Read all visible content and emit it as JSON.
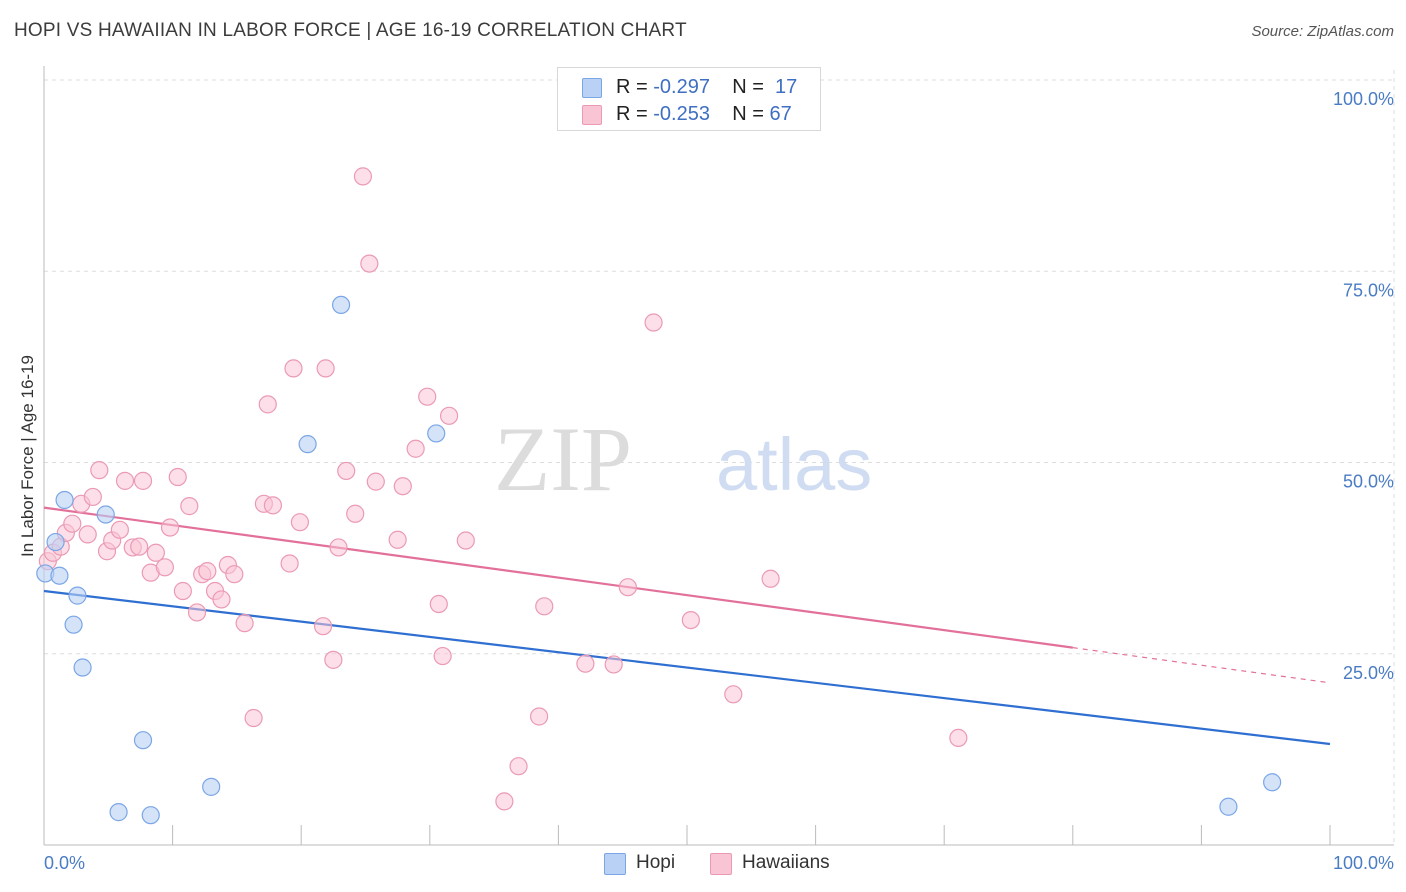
{
  "header": {
    "title": "HOPI VS HAWAIIAN IN LABOR FORCE | AGE 16-19 CORRELATION CHART",
    "source": "Source: ZipAtlas.com"
  },
  "watermark": {
    "zip": "ZIP",
    "atlas": "atlas"
  },
  "legend_top": {
    "hopi": {
      "r_label": "R =",
      "r_value": "-0.297",
      "n_label": "N =",
      "n_value": "17"
    },
    "hawaiians": {
      "r_label": "R =",
      "r_value": "-0.253",
      "n_label": "N =",
      "n_value": "67"
    }
  },
  "legend_bottom": {
    "hopi": "Hopi",
    "hawaiians": "Hawaiians"
  },
  "colors": {
    "hopi_fill": "#b9d1f5",
    "hopi_stroke": "#7aa6e6",
    "hopi_line": "#2f6fd1",
    "hawaiian_fill": "#f9c5d5",
    "hawaiian_stroke": "#eb9ab4",
    "hawaiian_line": "#e2709a",
    "tick_text": "#4a7cc4",
    "grid": "#dddddd"
  },
  "chart_data": {
    "type": "scatter",
    "title": "HOPI VS HAWAIIAN IN LABOR FORCE | AGE 16-19 CORRELATION CHART",
    "xlabel": "",
    "ylabel": "In Labor Force | Age 16-19",
    "xlim": [
      0,
      100
    ],
    "ylim": [
      0,
      100
    ],
    "x_tick_labels": [
      "0.0%",
      "100.0%"
    ],
    "y_ticks": [
      25,
      50,
      75,
      100
    ],
    "y_tick_labels": [
      "25.0%",
      "50.0%",
      "75.0%",
      "100.0%"
    ],
    "series": [
      {
        "name": "Hopi",
        "r": -0.297,
        "n": 17,
        "trend": {
          "x": [
            0,
            100
          ],
          "y": [
            33.2,
            13.2
          ]
        },
        "points": [
          [
            0.1,
            35.5
          ],
          [
            0.9,
            39.6
          ],
          [
            1.2,
            35.2
          ],
          [
            1.6,
            45.1
          ],
          [
            2.3,
            28.8
          ],
          [
            2.6,
            32.6
          ],
          [
            3.0,
            23.2
          ],
          [
            4.8,
            43.2
          ],
          [
            5.8,
            4.3
          ],
          [
            7.7,
            13.7
          ],
          [
            8.3,
            3.9
          ],
          [
            13.0,
            7.6
          ],
          [
            20.5,
            52.4
          ],
          [
            23.1,
            70.6
          ],
          [
            30.5,
            53.8
          ],
          [
            92.1,
            5.0
          ],
          [
            95.5,
            8.2
          ]
        ]
      },
      {
        "name": "Hawaiians",
        "r": -0.253,
        "n": 67,
        "trend": {
          "x": [
            0,
            80
          ],
          "y": [
            44.1,
            25.8
          ]
        },
        "trend_dashed": {
          "x": [
            80,
            100
          ],
          "y": [
            25.8,
            21.2
          ]
        },
        "points": [
          [
            0.3,
            37.1
          ],
          [
            0.7,
            38.2
          ],
          [
            1.3,
            39.0
          ],
          [
            1.7,
            40.8
          ],
          [
            2.2,
            42.0
          ],
          [
            2.9,
            44.6
          ],
          [
            3.4,
            40.6
          ],
          [
            3.8,
            45.5
          ],
          [
            4.3,
            49.0
          ],
          [
            4.9,
            38.4
          ],
          [
            5.3,
            39.8
          ],
          [
            5.9,
            41.2
          ],
          [
            6.3,
            47.6
          ],
          [
            6.9,
            38.9
          ],
          [
            7.4,
            39.0
          ],
          [
            7.7,
            47.6
          ],
          [
            8.3,
            35.6
          ],
          [
            8.7,
            38.2
          ],
          [
            9.4,
            36.3
          ],
          [
            9.8,
            41.5
          ],
          [
            10.4,
            48.1
          ],
          [
            10.8,
            33.2
          ],
          [
            11.3,
            44.3
          ],
          [
            11.9,
            30.4
          ],
          [
            12.3,
            35.4
          ],
          [
            12.7,
            35.8
          ],
          [
            13.3,
            33.2
          ],
          [
            13.8,
            32.1
          ],
          [
            14.3,
            36.6
          ],
          [
            14.8,
            35.4
          ],
          [
            15.6,
            29.0
          ],
          [
            16.3,
            16.6
          ],
          [
            17.1,
            44.6
          ],
          [
            17.4,
            57.6
          ],
          [
            17.8,
            44.4
          ],
          [
            19.1,
            36.8
          ],
          [
            19.4,
            62.3
          ],
          [
            19.9,
            42.2
          ],
          [
            21.7,
            28.6
          ],
          [
            21.9,
            62.3
          ],
          [
            22.5,
            24.2
          ],
          [
            22.9,
            38.9
          ],
          [
            23.5,
            48.9
          ],
          [
            24.2,
            43.3
          ],
          [
            24.8,
            87.4
          ],
          [
            25.3,
            76.0
          ],
          [
            25.8,
            47.5
          ],
          [
            27.5,
            39.9
          ],
          [
            27.9,
            46.9
          ],
          [
            28.9,
            51.8
          ],
          [
            29.8,
            58.6
          ],
          [
            30.7,
            31.5
          ],
          [
            31.0,
            24.7
          ],
          [
            31.5,
            56.1
          ],
          [
            32.8,
            39.8
          ],
          [
            35.8,
            5.7
          ],
          [
            36.9,
            10.3
          ],
          [
            38.5,
            16.8
          ],
          [
            38.9,
            31.2
          ],
          [
            42.1,
            23.7
          ],
          [
            44.3,
            23.6
          ],
          [
            45.4,
            33.7
          ],
          [
            47.4,
            68.3
          ],
          [
            50.3,
            29.4
          ],
          [
            53.6,
            19.7
          ],
          [
            56.5,
            34.8
          ],
          [
            71.1,
            14.0
          ]
        ]
      }
    ]
  }
}
